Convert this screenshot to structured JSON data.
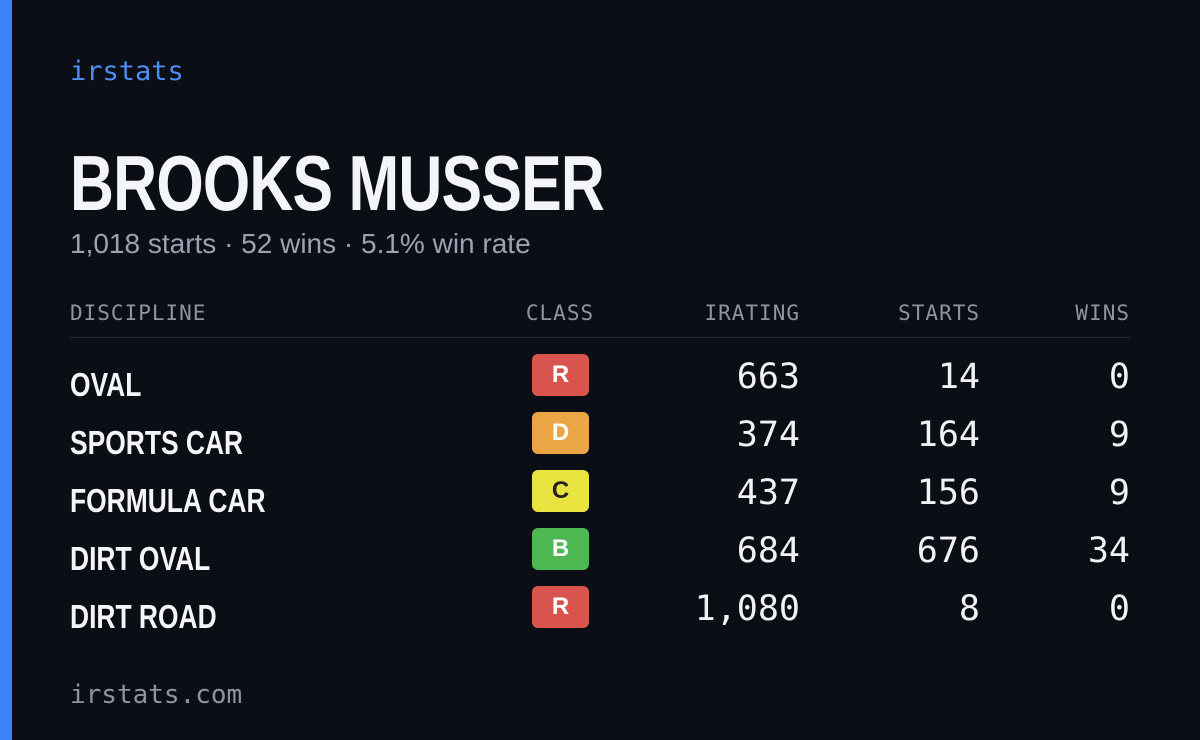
{
  "brand": "irstats",
  "driver": {
    "name": "BROOKS MUSSER",
    "summary": "1,018 starts · 52 wins · 5.1% win rate"
  },
  "table": {
    "headers": {
      "discipline": "DISCIPLINE",
      "class": "CLASS",
      "irating": "IRATING",
      "starts": "STARTS",
      "wins": "WINS"
    },
    "rows": [
      {
        "discipline": "OVAL",
        "class": "R",
        "class_color": "#d9534f",
        "irating": "663",
        "starts": "14",
        "wins": "0"
      },
      {
        "discipline": "SPORTS CAR",
        "class": "D",
        "class_color": "#eba544",
        "irating": "374",
        "starts": "164",
        "wins": "9"
      },
      {
        "discipline": "FORMULA CAR",
        "class": "C",
        "class_color": "#e9e33f",
        "irating": "437",
        "starts": "156",
        "wins": "9"
      },
      {
        "discipline": "DIRT OVAL",
        "class": "B",
        "class_color": "#4db852",
        "irating": "684",
        "starts": "676",
        "wins": "34"
      },
      {
        "discipline": "DIRT ROAD",
        "class": "R",
        "class_color": "#d9534f",
        "irating": "1,080",
        "starts": "8",
        "wins": "0"
      }
    ]
  },
  "footer": "irstats.com"
}
